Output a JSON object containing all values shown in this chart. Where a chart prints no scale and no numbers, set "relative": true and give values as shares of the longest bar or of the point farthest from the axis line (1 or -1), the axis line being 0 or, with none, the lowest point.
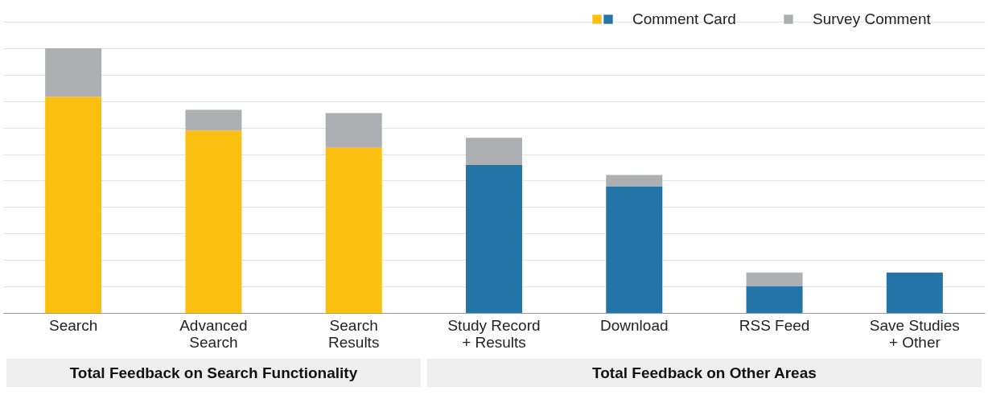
{
  "chart_data": {
    "type": "bar",
    "stacked": true,
    "relative": true,
    "grid": "y",
    "legend": "top right",
    "categories": [
      "Search",
      "Advanced\nSearch",
      "Search\nResults",
      "Study Record\n+ Results",
      "Download",
      "RSS Feed",
      "Save Studies\n+ Other"
    ],
    "series": [
      {
        "name": "Comment Card",
        "colors": [
          "#fbbf10",
          "#fbbf10",
          "#fbbf10",
          "#2474a8",
          "#2474a8",
          "#2474a8",
          "#2474a8"
        ],
        "values": [
          0.817,
          0.689,
          0.626,
          0.56,
          0.479,
          0.102,
          0.153
        ]
      },
      {
        "name": "Survey Comment",
        "color": "#aeafb3",
        "values": [
          0.183,
          0.078,
          0.129,
          0.102,
          0.042,
          0.051,
          0
        ]
      }
    ],
    "annotations": [
      "Total Feedback on Search Functionality",
      "Total Feedback on Other Areas"
    ]
  }
}
